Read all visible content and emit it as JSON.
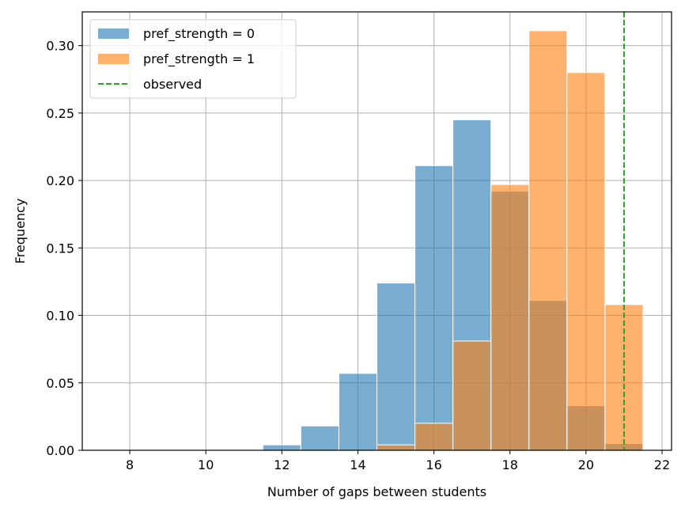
{
  "chart_data": {
    "type": "histogram",
    "xlabel": "Number of gaps between students",
    "ylabel": "Frequency",
    "xlim": [
      6.75,
      22.25
    ],
    "ylim": [
      0,
      0.325
    ],
    "xticks": [
      8,
      10,
      12,
      14,
      16,
      18,
      20,
      22
    ],
    "yticks": [
      0.0,
      0.05,
      0.1,
      0.15,
      0.2,
      0.25,
      0.3
    ],
    "ytick_labels": [
      "0.00",
      "0.05",
      "0.10",
      "0.15",
      "0.20",
      "0.25",
      "0.30"
    ],
    "grid": true,
    "legend_position": "top-left",
    "series": [
      {
        "name": "pref_strength = 0",
        "color": "#1f77b4",
        "alpha": 0.6,
        "bins": [
          {
            "x0": 11.5,
            "x1": 12.5,
            "value": 0.004
          },
          {
            "x0": 12.5,
            "x1": 13.5,
            "value": 0.018
          },
          {
            "x0": 13.5,
            "x1": 14.5,
            "value": 0.057
          },
          {
            "x0": 14.5,
            "x1": 15.5,
            "value": 0.124
          },
          {
            "x0": 15.5,
            "x1": 16.5,
            "value": 0.211
          },
          {
            "x0": 16.5,
            "x1": 17.5,
            "value": 0.245
          },
          {
            "x0": 17.5,
            "x1": 18.5,
            "value": 0.192
          },
          {
            "x0": 18.5,
            "x1": 19.5,
            "value": 0.111
          },
          {
            "x0": 19.5,
            "x1": 20.5,
            "value": 0.033
          },
          {
            "x0": 20.5,
            "x1": 21.5,
            "value": 0.005
          }
        ]
      },
      {
        "name": "pref_strength = 1",
        "color": "#ff7f0e",
        "alpha": 0.6,
        "bins": [
          {
            "x0": 14.5,
            "x1": 15.5,
            "value": 0.004
          },
          {
            "x0": 15.5,
            "x1": 16.5,
            "value": 0.02
          },
          {
            "x0": 16.5,
            "x1": 17.5,
            "value": 0.081
          },
          {
            "x0": 17.5,
            "x1": 18.5,
            "value": 0.197
          },
          {
            "x0": 18.5,
            "x1": 19.5,
            "value": 0.311
          },
          {
            "x0": 19.5,
            "x1": 20.5,
            "value": 0.28
          },
          {
            "x0": 20.5,
            "x1": 21.5,
            "value": 0.108
          }
        ]
      }
    ],
    "observed": {
      "name": "observed",
      "x": 21,
      "color": "#2ca02c",
      "style": "dashed"
    }
  }
}
